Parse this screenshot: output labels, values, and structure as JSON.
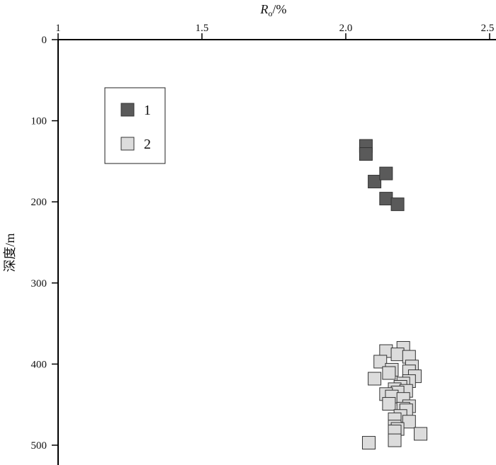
{
  "chart_data": {
    "type": "scatter",
    "xlabel": "R",
    "xlabel_sub": "o",
    "xlabel_suffix": "/%",
    "ylabel": "深度/m",
    "xlim": [
      1.0,
      2.5
    ],
    "ylim": [
      0,
      525
    ],
    "x_axis_position": "top",
    "y_inverted": true,
    "grid": false,
    "x_ticks": [
      {
        "value": 1.0,
        "label": "1"
      },
      {
        "value": 1.5,
        "label": "1.5"
      },
      {
        "value": 2.0,
        "label": "2.0"
      },
      {
        "value": 2.5,
        "label": "2.5"
      }
    ],
    "y_ticks": [
      {
        "value": 0,
        "label": "0"
      },
      {
        "value": 100,
        "label": "100"
      },
      {
        "value": 200,
        "label": "200"
      },
      {
        "value": 300,
        "label": "300"
      },
      {
        "value": 400,
        "label": "400"
      },
      {
        "value": 500,
        "label": "500"
      }
    ],
    "legend_position": "top-left",
    "series": [
      {
        "name": "1",
        "color": "#5a5a5a",
        "points": [
          {
            "x": 2.07,
            "y": 131
          },
          {
            "x": 2.07,
            "y": 141
          },
          {
            "x": 2.1,
            "y": 175
          },
          {
            "x": 2.14,
            "y": 165
          },
          {
            "x": 2.14,
            "y": 196
          },
          {
            "x": 2.18,
            "y": 203
          }
        ]
      },
      {
        "name": "2",
        "color": "#dcdcdc",
        "points": [
          {
            "x": 2.2,
            "y": 380
          },
          {
            "x": 2.14,
            "y": 384
          },
          {
            "x": 2.18,
            "y": 388
          },
          {
            "x": 2.22,
            "y": 391
          },
          {
            "x": 2.12,
            "y": 397
          },
          {
            "x": 2.23,
            "y": 403
          },
          {
            "x": 2.16,
            "y": 407
          },
          {
            "x": 2.22,
            "y": 409
          },
          {
            "x": 2.15,
            "y": 411
          },
          {
            "x": 2.24,
            "y": 415
          },
          {
            "x": 2.1,
            "y": 418
          },
          {
            "x": 2.22,
            "y": 421
          },
          {
            "x": 2.2,
            "y": 424
          },
          {
            "x": 2.19,
            "y": 428
          },
          {
            "x": 2.17,
            "y": 431
          },
          {
            "x": 2.21,
            "y": 433
          },
          {
            "x": 2.18,
            "y": 435
          },
          {
            "x": 2.14,
            "y": 437
          },
          {
            "x": 2.16,
            "y": 440
          },
          {
            "x": 2.2,
            "y": 443
          },
          {
            "x": 2.15,
            "y": 449
          },
          {
            "x": 2.22,
            "y": 452
          },
          {
            "x": 2.2,
            "y": 455
          },
          {
            "x": 2.21,
            "y": 457
          },
          {
            "x": 2.19,
            "y": 464
          },
          {
            "x": 2.17,
            "y": 468
          },
          {
            "x": 2.22,
            "y": 471
          },
          {
            "x": 2.17,
            "y": 477
          },
          {
            "x": 2.18,
            "y": 480
          },
          {
            "x": 2.17,
            "y": 483
          },
          {
            "x": 2.26,
            "y": 486
          },
          {
            "x": 2.17,
            "y": 494
          },
          {
            "x": 2.08,
            "y": 497
          }
        ]
      }
    ]
  }
}
